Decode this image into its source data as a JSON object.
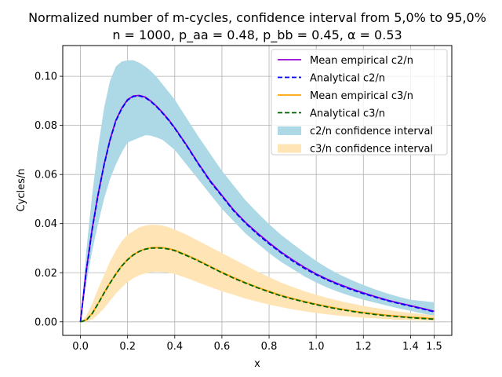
{
  "chart_data": {
    "type": "line",
    "title_line1": "Normalized number of m-cycles, confidence interval from 5,0% to 95,0%",
    "title_line2": "n = 1000, p_aa = 0.48, p_bb = 0.45, α = 0.53",
    "xlabel": "x",
    "ylabel": "Cycles/n",
    "xlim": [
      -0.075,
      1.575
    ],
    "ylim": [
      -0.0055,
      0.1125
    ],
    "xticks": [
      0.0,
      0.2,
      0.4,
      0.6,
      0.8,
      1.0,
      1.2,
      1.4,
      1.5
    ],
    "xtick_labels": [
      "0.0",
      "0.2",
      "0.4",
      "0.6",
      "0.8",
      "1.0",
      "1.2",
      "1.4",
      "1.5"
    ],
    "yticks": [
      0.0,
      0.02,
      0.04,
      0.06,
      0.08,
      0.1
    ],
    "ytick_labels": [
      "0.00",
      "0.02",
      "0.04",
      "0.06",
      "0.08",
      "0.10"
    ],
    "grid": true,
    "legend_position": "top-right",
    "x": [
      0,
      0.025,
      0.05,
      0.075,
      0.1,
      0.125,
      0.15,
      0.175,
      0.2,
      0.225,
      0.25,
      0.275,
      0.3,
      0.325,
      0.35,
      0.375,
      0.4,
      0.45,
      0.5,
      0.55,
      0.6,
      0.65,
      0.7,
      0.75,
      0.8,
      0.85,
      0.9,
      0.95,
      1.0,
      1.05,
      1.1,
      1.15,
      1.2,
      1.25,
      1.3,
      1.35,
      1.4,
      1.45,
      1.5
    ],
    "series": [
      {
        "name": "Mean empirical c2/n",
        "role": "line",
        "color": "#9400d3",
        "dash": "solid",
        "values": [
          0.0,
          0.021,
          0.038,
          0.052,
          0.064,
          0.074,
          0.082,
          0.087,
          0.0905,
          0.092,
          0.0922,
          0.0915,
          0.0898,
          0.0876,
          0.085,
          0.0822,
          0.079,
          0.072,
          0.0645,
          0.0575,
          0.0515,
          0.0455,
          0.0405,
          0.0362,
          0.0322,
          0.0285,
          0.0252,
          0.0222,
          0.0195,
          0.0172,
          0.0152,
          0.0134,
          0.0118,
          0.0103,
          0.0089,
          0.0077,
          0.0066,
          0.0055,
          0.0043
        ]
      },
      {
        "name": "Analytical c2/n",
        "role": "line",
        "color": "#0000ff",
        "dash": "dashed",
        "values": [
          0.0,
          0.0208,
          0.0378,
          0.0518,
          0.0638,
          0.0738,
          0.0818,
          0.0868,
          0.0903,
          0.0918,
          0.092,
          0.0913,
          0.0896,
          0.0874,
          0.0848,
          0.082,
          0.0788,
          0.0718,
          0.0643,
          0.0572,
          0.0512,
          0.0452,
          0.0402,
          0.0358,
          0.0318,
          0.0282,
          0.0248,
          0.0218,
          0.0192,
          0.0169,
          0.0149,
          0.0131,
          0.0115,
          0.0101,
          0.0087,
          0.0075,
          0.0064,
          0.0053,
          0.0041
        ]
      },
      {
        "name": "Mean empirical c3/n",
        "role": "line",
        "color": "#ffa500",
        "dash": "solid",
        "values": [
          0.0,
          0.0008,
          0.0035,
          0.0075,
          0.0118,
          0.0158,
          0.0195,
          0.0228,
          0.0254,
          0.0274,
          0.0288,
          0.0297,
          0.0302,
          0.0303,
          0.0302,
          0.0298,
          0.0292,
          0.0272,
          0.025,
          0.0226,
          0.0202,
          0.018,
          0.016,
          0.0141,
          0.0124,
          0.0108,
          0.0095,
          0.0083,
          0.0072,
          0.0062,
          0.0053,
          0.0045,
          0.0038,
          0.0032,
          0.0027,
          0.0023,
          0.0019,
          0.0016,
          0.0013
        ]
      },
      {
        "name": "Analytical c3/n",
        "role": "line",
        "color": "#006400",
        "dash": "dashed",
        "values": [
          0.0,
          0.0007,
          0.0034,
          0.0074,
          0.0117,
          0.0157,
          0.0194,
          0.0227,
          0.0253,
          0.0273,
          0.0287,
          0.0296,
          0.03,
          0.0301,
          0.03,
          0.0296,
          0.029,
          0.027,
          0.0248,
          0.0224,
          0.02,
          0.0178,
          0.0158,
          0.0139,
          0.0122,
          0.0106,
          0.0093,
          0.0081,
          0.007,
          0.006,
          0.0051,
          0.0043,
          0.0036,
          0.003,
          0.0025,
          0.0021,
          0.0017,
          0.0014,
          0.0011
        ]
      },
      {
        "name": "c2/n confidence interval",
        "role": "band",
        "color": "#add8e6",
        "lower": [
          0.0,
          0.016,
          0.029,
          0.04,
          0.05,
          0.058,
          0.064,
          0.069,
          0.073,
          0.074,
          0.075,
          0.076,
          0.0758,
          0.075,
          0.074,
          0.072,
          0.07,
          0.064,
          0.058,
          0.052,
          0.046,
          0.041,
          0.036,
          0.032,
          0.028,
          0.0245,
          0.0215,
          0.0185,
          0.016,
          0.0138,
          0.012,
          0.0104,
          0.009,
          0.0078,
          0.0066,
          0.0055,
          0.0045,
          0.0034,
          0.0025
        ],
        "upper": [
          0.0,
          0.029,
          0.052,
          0.071,
          0.087,
          0.098,
          0.104,
          0.106,
          0.1065,
          0.1065,
          0.1055,
          0.104,
          0.102,
          0.0995,
          0.0965,
          0.0935,
          0.0905,
          0.083,
          0.0755,
          0.0685,
          0.0615,
          0.0555,
          0.0495,
          0.0445,
          0.0398,
          0.0355,
          0.0318,
          0.0282,
          0.0248,
          0.0218,
          0.0192,
          0.017,
          0.015,
          0.0132,
          0.0116,
          0.0102,
          0.009,
          0.0085,
          0.008
        ]
      },
      {
        "name": "c3/n confidence interval",
        "role": "band",
        "color": "#ffe4b5",
        "lower": [
          0.0,
          0.0,
          0.001,
          0.003,
          0.0055,
          0.0085,
          0.0115,
          0.014,
          0.0162,
          0.0178,
          0.019,
          0.0197,
          0.0202,
          0.0204,
          0.0203,
          0.02,
          0.0195,
          0.0179,
          0.016,
          0.0142,
          0.0125,
          0.011,
          0.0095,
          0.0082,
          0.007,
          0.006,
          0.0051,
          0.0043,
          0.0036,
          0.003,
          0.0025,
          0.0021,
          0.0017,
          0.0014,
          0.0011,
          0.0009,
          0.0007,
          0.0005,
          0.0004
        ],
        "upper": [
          0.0,
          0.0025,
          0.0075,
          0.0135,
          0.019,
          0.0245,
          0.029,
          0.0328,
          0.0355,
          0.037,
          0.0385,
          0.0392,
          0.0395,
          0.0395,
          0.0392,
          0.0385,
          0.0376,
          0.0355,
          0.033,
          0.0305,
          0.028,
          0.0255,
          0.023,
          0.0205,
          0.0182,
          0.016,
          0.0142,
          0.0125,
          0.011,
          0.0097,
          0.0085,
          0.0075,
          0.0065,
          0.0057,
          0.0049,
          0.0042,
          0.0036,
          0.0031,
          0.0027
        ]
      }
    ]
  }
}
